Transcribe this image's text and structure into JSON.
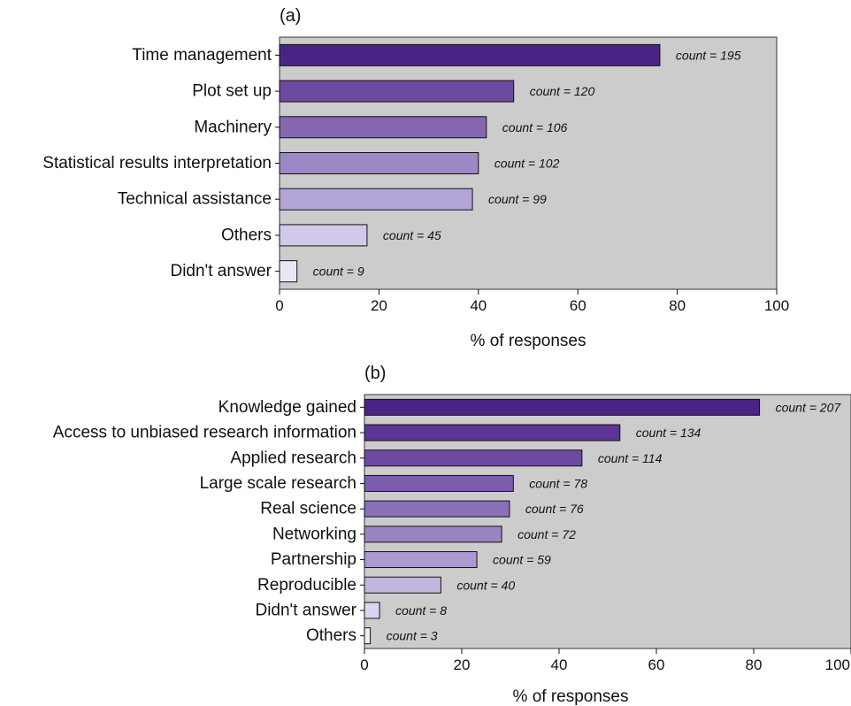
{
  "chart_data": [
    {
      "type": "bar",
      "orientation": "horizontal",
      "panel_label": "(a)",
      "categories": [
        "Time management",
        "Plot set up",
        "Machinery",
        "Statistical results interpretation",
        "Technical assistance",
        "Others",
        "Didn't answer"
      ],
      "values": [
        76.5,
        47.1,
        41.6,
        40.0,
        38.8,
        17.6,
        3.5
      ],
      "data_labels": [
        "count = 195",
        "count = 120",
        "count = 106",
        "count = 102",
        "count = 99",
        "count = 45",
        "count = 9"
      ],
      "xlabel": "% of responses",
      "xlim": [
        0,
        100
      ],
      "xticks": [
        "0",
        "20",
        "40",
        "60",
        "80",
        "100"
      ],
      "grid": false,
      "background": "#cccccc",
      "colors": [
        "#4b2384",
        "#6a4a9f",
        "#8467b0",
        "#9b88c4",
        "#b4a5d7",
        "#d2c8e9",
        "#ebe6f6"
      ]
    },
    {
      "type": "bar",
      "orientation": "horizontal",
      "panel_label": "(b)",
      "categories": [
        "Knowledge gained",
        "Access to unbiased research information",
        "Applied research",
        "Large scale research",
        "Real science",
        "Networking",
        "Partnership",
        "Reproducible",
        "Didn't answer",
        "Others"
      ],
      "values": [
        81.2,
        52.5,
        44.7,
        30.6,
        29.8,
        28.2,
        23.1,
        15.7,
        3.1,
        1.2
      ],
      "data_labels": [
        "count = 207",
        "count = 134",
        "count = 114",
        "count = 78",
        "count = 76",
        "count = 72",
        "count = 59",
        "count = 40",
        "count = 8",
        "count = 3"
      ],
      "xlabel": "% of responses",
      "xlim": [
        0,
        100
      ],
      "xticks": [
        "0",
        "20",
        "40",
        "60",
        "80",
        "100"
      ],
      "grid": false,
      "background": "#cccccc",
      "colors": [
        "#4b2384",
        "#5d3595",
        "#6d4ba2",
        "#7c5dab",
        "#8b70b8",
        "#9a84c3",
        "#ab99cf",
        "#c2b5e0",
        "#ddd5ef",
        "#f1edf9"
      ]
    }
  ]
}
